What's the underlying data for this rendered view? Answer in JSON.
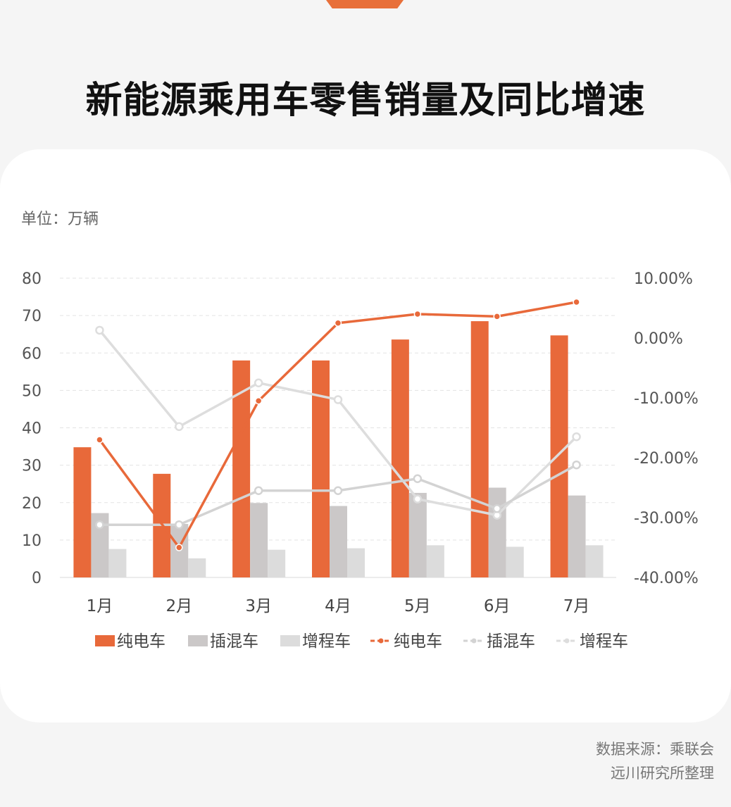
{
  "title": "新能源乘用车零售销量及同比增速",
  "unit_label": "单位：万辆",
  "source": {
    "line1": "数据来源：乘联会",
    "line2": "远川研究所整理"
  },
  "colors": {
    "bev": "#e8693a",
    "phev": "#cbc8c8",
    "erev": "#dcdcdc",
    "bev_line": "#e8693a",
    "phev_line": "#d3d3d3",
    "erev_line": "#dddddd"
  },
  "chart_data": {
    "type": "bar",
    "categories": [
      "1月",
      "2月",
      "3月",
      "4月",
      "5月",
      "6月",
      "7月"
    ],
    "y_left": {
      "min": 0,
      "max": 80,
      "step": 10,
      "ticks": [
        "0",
        "10",
        "20",
        "30",
        "40",
        "50",
        "60",
        "70",
        "80"
      ]
    },
    "y_right": {
      "min": -40,
      "max": 10,
      "step": 10,
      "ticks": [
        "-40.00%",
        "-30.00%",
        "-20.00%",
        "-10.00%",
        "0.00%",
        "10.00%"
      ]
    },
    "grid": true,
    "legend_position": "bottom",
    "series": [
      {
        "name": "纯电车",
        "type": "bar",
        "axis": "left",
        "values": [
          34.8,
          27.7,
          58.0,
          58.0,
          63.6,
          68.5,
          64.7
        ]
      },
      {
        "name": "插混车",
        "type": "bar",
        "axis": "left",
        "values": [
          17.2,
          14.3,
          19.9,
          19.1,
          22.6,
          24.0,
          21.9
        ]
      },
      {
        "name": "增程车",
        "type": "bar",
        "axis": "left",
        "values": [
          7.6,
          5.1,
          7.4,
          7.8,
          8.6,
          8.2,
          8.6
        ]
      },
      {
        "name": "纯电车",
        "type": "line",
        "axis": "right",
        "values": [
          -17.0,
          -35.0,
          -10.5,
          2.5,
          4.0,
          3.6,
          6.0
        ]
      },
      {
        "name": "插混车",
        "type": "line",
        "axis": "right",
        "values": [
          -31.2,
          -31.2,
          -25.5,
          -25.5,
          -23.5,
          -28.5,
          -21.2
        ]
      },
      {
        "name": "增程车",
        "type": "line",
        "axis": "right",
        "values": [
          1.3,
          -14.8,
          -7.5,
          -10.3,
          -26.9,
          -29.6,
          -16.5
        ]
      }
    ]
  }
}
